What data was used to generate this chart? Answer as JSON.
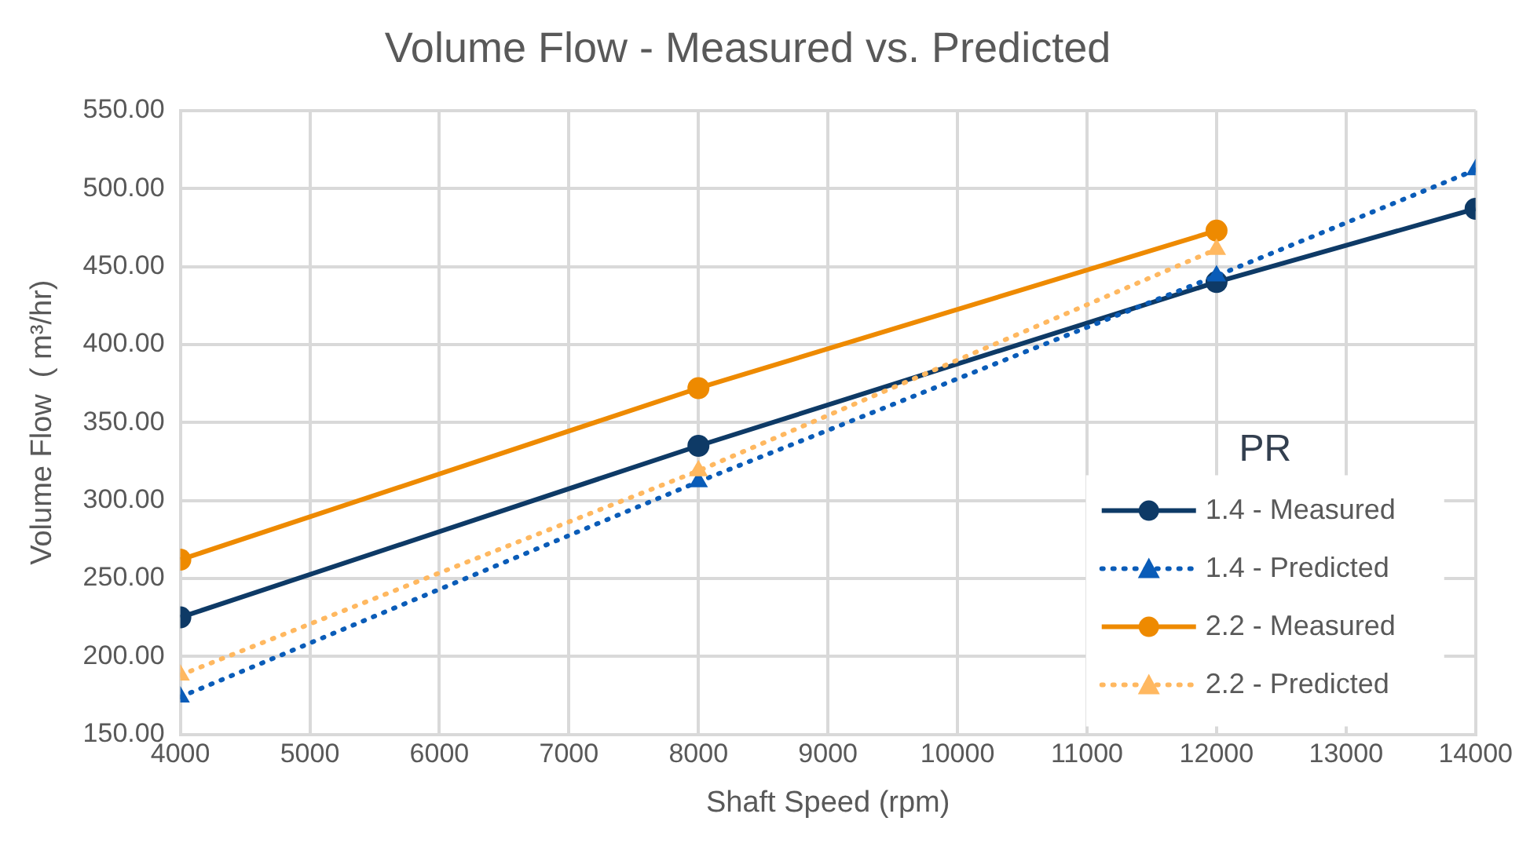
{
  "chart_data": {
    "type": "line",
    "title": "Volume Flow - Measured vs. Predicted",
    "xlabel": "Shaft Speed (rpm)",
    "ylabel": "Volume Flow  ( m³/hr)",
    "legend_title": "PR",
    "x": [
      4000,
      8000,
      12000,
      14000
    ],
    "series": [
      {
        "name": "1.4 - Measured",
        "color": "#0e3a66",
        "marker": "circle",
        "line_style": "solid",
        "values": [
          225,
          335,
          440,
          487
        ]
      },
      {
        "name": "1.4 - Predicted",
        "color": "#0a5cb8",
        "marker": "triangle",
        "line_style": "dotted",
        "values": [
          174,
          312,
          444,
          512
        ]
      },
      {
        "name": "2.2 - Measured",
        "color": "#ee8a00",
        "marker": "circle",
        "line_style": "solid",
        "x": [
          4000,
          8000,
          12000
        ],
        "values": [
          262,
          372,
          473
        ]
      },
      {
        "name": "2.2 - Predicted",
        "color": "#ffb860",
        "marker": "triangle",
        "line_style": "dotted",
        "x": [
          4000,
          8000,
          12000
        ],
        "values": [
          188,
          319,
          461
        ]
      }
    ],
    "xlim": [
      4000,
      14000
    ],
    "xticks": [
      4000,
      5000,
      6000,
      7000,
      8000,
      9000,
      10000,
      11000,
      12000,
      13000,
      14000
    ],
    "ylim": [
      150,
      550
    ],
    "yticks": [
      {
        "value": 150,
        "label": "150.00"
      },
      {
        "value": 200,
        "label": "200.00"
      },
      {
        "value": 250,
        "label": "250.00"
      },
      {
        "value": 300,
        "label": "300.00"
      },
      {
        "value": 350,
        "label": "350.00"
      },
      {
        "value": 400,
        "label": "400.00"
      },
      {
        "value": 450,
        "label": "450.00"
      },
      {
        "value": 500,
        "label": "500.00"
      },
      {
        "value": 550,
        "label": "550.00"
      }
    ],
    "grid": true,
    "legend": "bottom right"
  }
}
